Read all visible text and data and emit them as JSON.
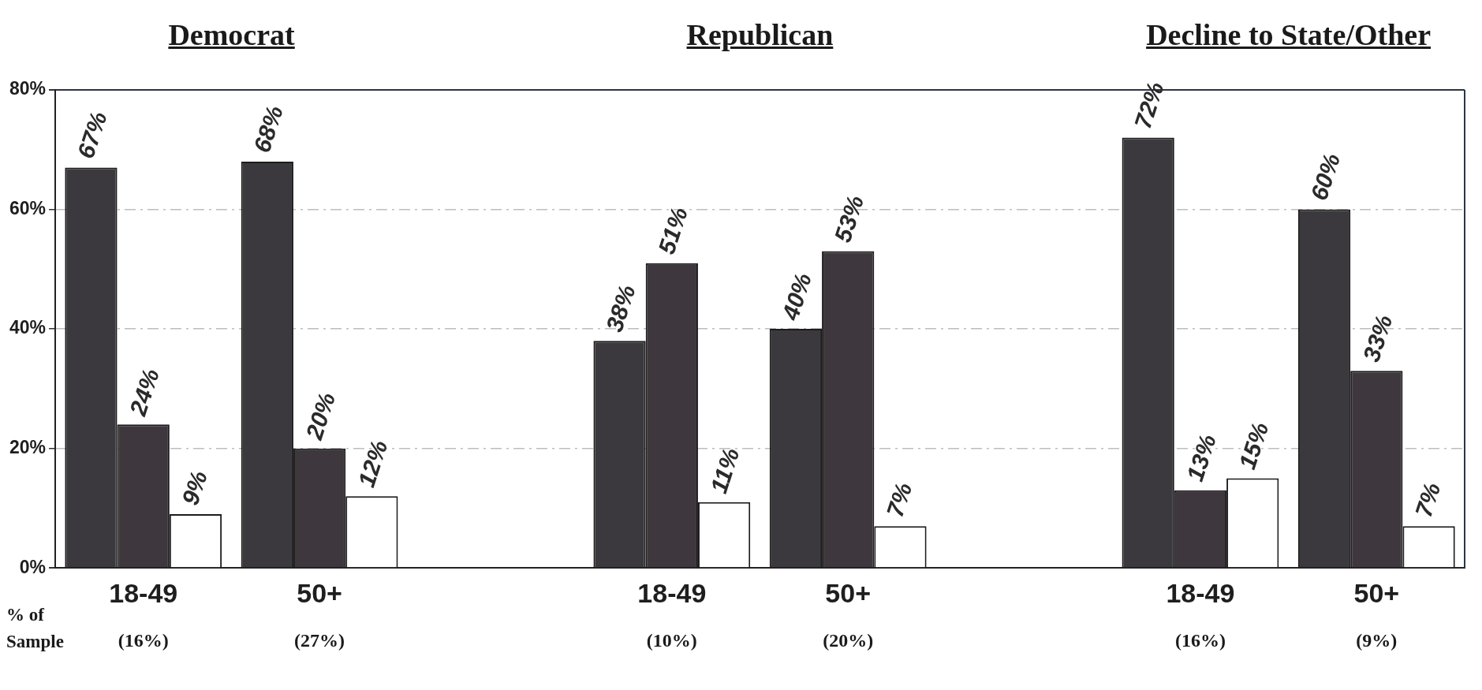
{
  "chart_data": {
    "type": "bar",
    "categories": [
      "18-49",
      "50+",
      null,
      "18-49",
      "50+",
      null,
      "18-49",
      "50+"
    ],
    "series": [
      {
        "color": "#3b393e",
        "values": [
          67,
          68,
          null,
          38,
          40,
          null,
          72,
          60
        ],
        "value_labels": [
          "67%",
          "68%",
          null,
          "38%",
          "40%",
          null,
          "72%",
          "60%"
        ]
      },
      {
        "color": "#3e383e",
        "values": [
          24,
          20,
          null,
          51,
          53,
          null,
          13,
          33
        ],
        "value_labels": [
          "24%",
          "20%",
          null,
          "51%",
          "53%",
          null,
          "13%",
          "33%"
        ]
      },
      {
        "color": "#ffffff",
        "values": [
          9,
          12,
          null,
          11,
          7,
          null,
          15,
          7
        ],
        "value_labels": [
          "9%",
          "12%",
          null,
          "11%",
          "7%",
          null,
          "15%",
          "7%"
        ]
      }
    ],
    "ylim": [
      0,
      80
    ],
    "yticks": [
      {
        "value": 0,
        "label": "0%"
      },
      {
        "value": 20,
        "label": "20%"
      },
      {
        "value": 40,
        "label": "40%"
      },
      {
        "value": 60,
        "label": "60%"
      },
      {
        "value": 80,
        "label": "80%"
      }
    ],
    "grid": "y",
    "legend": false,
    "annotations": [
      "Democrat",
      "Republican",
      "Decline to State/Other",
      "% of Sample",
      "(16%)",
      "(27%)",
      "(10%)",
      "(20%)",
      "(16%)",
      "(9%)"
    ]
  }
}
